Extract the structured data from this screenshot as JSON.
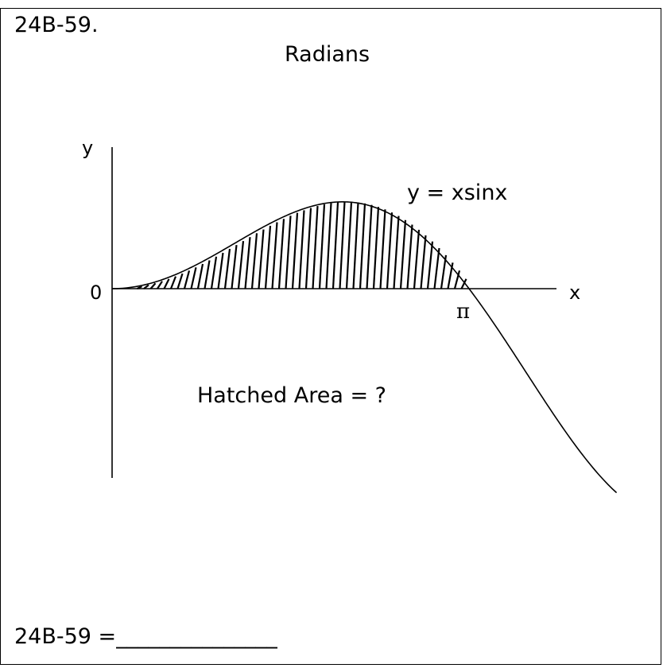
{
  "problem": {
    "id_label": "24B-59.",
    "units_title": "Radians",
    "answer_prompt": "24B-59 =",
    "answer_blank": "_______________"
  },
  "figure": {
    "y_axis_label": "y",
    "x_axis_label": "x",
    "origin_label": "0",
    "pi_label": "π",
    "curve_label": "y = xsinx",
    "area_question": "Hatched Area = ?"
  }
}
